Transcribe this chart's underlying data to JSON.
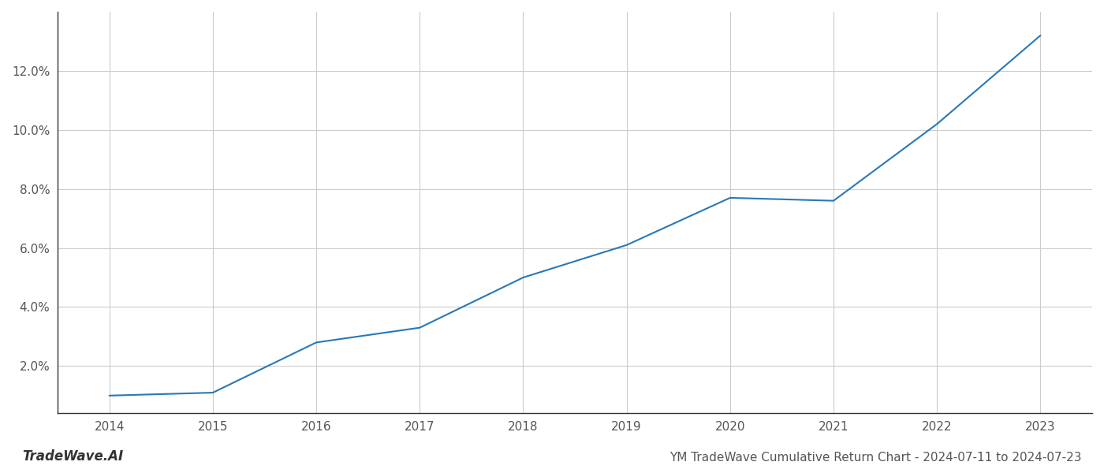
{
  "x": [
    2014,
    2015,
    2016,
    2017,
    2018,
    2019,
    2020,
    2021,
    2022,
    2023
  ],
  "y": [
    1.0,
    1.1,
    2.8,
    3.3,
    5.0,
    6.1,
    7.7,
    7.6,
    10.2,
    13.2
  ],
  "line_color": "#2878b8",
  "line_width": 1.5,
  "background_color": "#ffffff",
  "grid_color": "#cccccc",
  "title": "YM TradeWave Cumulative Return Chart - 2024-07-11 to 2024-07-23",
  "title_fontsize": 11,
  "watermark_text": "TradeWave.AI",
  "watermark_fontsize": 12,
  "xlim": [
    2013.5,
    2023.5
  ],
  "ylim": [
    0.4,
    14.0
  ],
  "ytick_labels": [
    "2.0%",
    "4.0%",
    "6.0%",
    "8.0%",
    "10.0%",
    "12.0%"
  ],
  "ytick_values": [
    2.0,
    4.0,
    6.0,
    8.0,
    10.0,
    12.0
  ],
  "xtick_values": [
    2014,
    2015,
    2016,
    2017,
    2018,
    2019,
    2020,
    2021,
    2022,
    2023
  ],
  "tick_fontsize": 11,
  "spine_color": "#333333"
}
